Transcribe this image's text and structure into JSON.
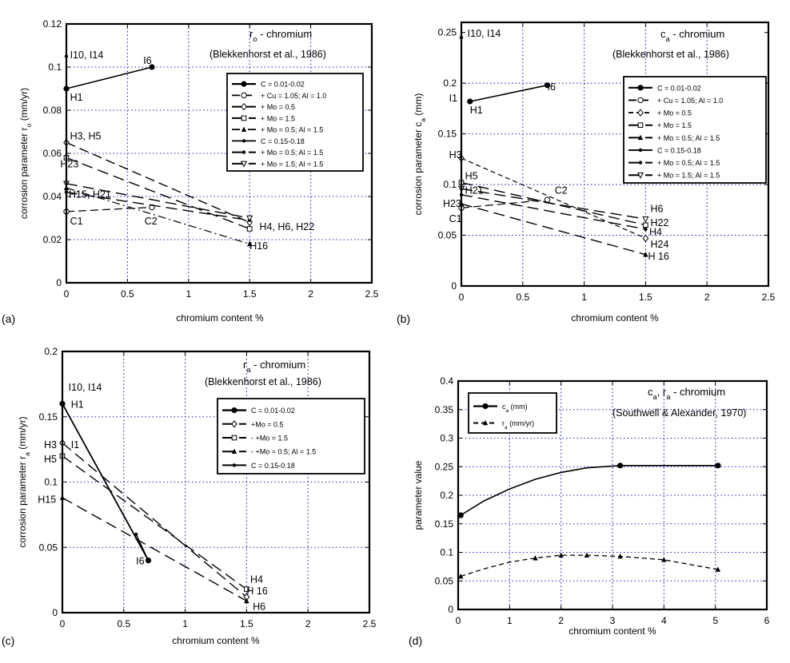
{
  "chart_data": [
    {
      "panel": "(a)",
      "type": "line",
      "title_main": "r",
      "title_sub": "o",
      "title_rest": " - chromium",
      "source": "(Blekkenhorst et al., 1986)",
      "xlabel": "chromium content  %",
      "ylabel_main": "corrosion parameter  r",
      "ylabel_sub": "o",
      "ylabel_unit": "  (mm/yr)",
      "xlim": [
        0,
        2.5
      ],
      "ylim": [
        0,
        0.12
      ],
      "xticks": [
        0,
        0.5,
        1,
        1.5,
        2,
        2.5
      ],
      "yticks": [
        0,
        0.02,
        0.04,
        0.06,
        0.08,
        0.1,
        0.12
      ],
      "xtick_labels": [
        "0",
        "0.5",
        "1",
        "1.5",
        "2",
        "2.5"
      ],
      "ytick_labels": [
        "0",
        "0.02",
        "0.04",
        "0.06",
        "0.08",
        "0.1",
        "0.12"
      ],
      "grid": true,
      "legend_position": "top-right",
      "series": [
        {
          "name": "C = 0.01-0.02",
          "x": [
            0,
            0.7
          ],
          "y": [
            0.09,
            0.1
          ],
          "dash": "",
          "width": 1.6,
          "marker": "circle-filled"
        },
        {
          "name": "+ Cu = 1.05; Al = 1.0",
          "x": [
            0,
            0.7
          ],
          "y": [
            0.033,
            0.035
          ],
          "dash": "10,5",
          "width": 1.2,
          "marker": "circle-open"
        },
        {
          "name": "+ Mo = 0.5",
          "x": [
            0,
            1.5
          ],
          "y": [
            0.065,
            0.028
          ],
          "dash": "12,6",
          "width": 1.4,
          "marker": "diamond"
        },
        {
          "name": "+ Mo = 1.5",
          "x": [
            0,
            1.5
          ],
          "y": [
            0.058,
            0.025
          ],
          "dash": "14,7",
          "width": 1.4,
          "marker": "square"
        },
        {
          "name": "+ Mo = 0.5; Al = 1.5",
          "x": [
            0,
            1.5
          ],
          "y": [
            0.044,
            0.018
          ],
          "dash": "10,4,2,4",
          "width": 1.2,
          "marker": "triangle"
        },
        {
          "name": "C = 0.15-0.18",
          "x": [
            0
          ],
          "y": [
            0.105
          ],
          "dash": "",
          "width": 1.2,
          "marker": "dot"
        },
        {
          "name": "+ Mo = 0.5; Al = 1.5",
          "x": [
            0,
            1.5
          ],
          "y": [
            0.042,
            0.029
          ],
          "dash": "14,7",
          "width": 1.4,
          "marker": "dot"
        },
        {
          "name": "+ Mo = 1.5; Al = 1.5",
          "x": [
            0,
            1.5
          ],
          "y": [
            0.046,
            0.03
          ],
          "dash": "14,7",
          "width": 1.4,
          "marker": "triangle-down"
        }
      ],
      "annotations": [
        {
          "text": "I10, I14",
          "x": 0.03,
          "y": 0.104
        },
        {
          "text": "I6",
          "x": 0.63,
          "y": 0.1015
        },
        {
          "text": "H1",
          "x": 0.03,
          "y": 0.0845
        },
        {
          "text": "H3, H5",
          "x": 0.03,
          "y": 0.0665
        },
        {
          "text": "H23",
          "x": -0.05,
          "y": 0.0535
        },
        {
          "text": "H15, H21",
          "x": 0.02,
          "y": 0.0395
        },
        {
          "text": "C1",
          "x": 0.03,
          "y": 0.027
        },
        {
          "text": "C2",
          "x": 0.64,
          "y": 0.027
        },
        {
          "text": "H4, H6, H22",
          "x": 1.58,
          "y": 0.0245
        },
        {
          "text": "H16",
          "x": 1.5,
          "y": 0.0155
        }
      ]
    },
    {
      "panel": "(b)",
      "type": "line",
      "title_main": "c",
      "title_sub": "a",
      "title_rest": " - chromium",
      "source": "(Blekkenhorst et al., 1986)",
      "xlabel": "chromium content  %",
      "ylabel_main": "corrosion parameter  c",
      "ylabel_sub": "a",
      "ylabel_unit": "  (mm)",
      "xlim": [
        0,
        2.5
      ],
      "ylim": [
        0,
        0.26
      ],
      "xticks": [
        0,
        0.5,
        1,
        1.5,
        2,
        2.5
      ],
      "yticks": [
        0,
        0.05,
        0.1,
        0.15,
        0.2,
        0.25
      ],
      "xtick_labels": [
        "0",
        "0.5",
        "1",
        "1.5",
        "2",
        "2.5"
      ],
      "ytick_labels": [
        "0",
        "0.05",
        "0.1",
        "0.15",
        "0.2",
        "0.25"
      ],
      "grid": true,
      "legend_position": "right",
      "series": [
        {
          "name": "C = 0.01-0.02",
          "x": [
            0.07,
            0.7
          ],
          "y": [
            0.182,
            0.198
          ],
          "dash": "",
          "width": 1.6,
          "marker": "circle-filled"
        },
        {
          "name": "+ Cu = 1.05; Al = 1.0",
          "x": [
            0,
            0.7
          ],
          "y": [
            0.077,
            0.085
          ],
          "dash": "10,5",
          "width": 1.2,
          "marker": "circle-open"
        },
        {
          "name": "+ Mo = 0.5",
          "x": [
            0,
            1.5
          ],
          "y": [
            0.126,
            0.047
          ],
          "dash": "6,4",
          "width": 1.2,
          "marker": "diamond"
        },
        {
          "name": "+ Mo = 1.5",
          "x": [
            0,
            1.5
          ],
          "y": [
            0.102,
            0.06
          ],
          "dash": "14,7",
          "width": 1.4,
          "marker": "square"
        },
        {
          "name": "+ Mo = 0.5; Al = 1.5",
          "x": [
            0,
            1.5
          ],
          "y": [
            0.081,
            0.031
          ],
          "dash": "14,7",
          "width": 1.4,
          "marker": "triangle"
        },
        {
          "name": "C = 0.15-0.18",
          "x": [
            0
          ],
          "y": [
            0.245
          ],
          "dash": "",
          "width": 1.2,
          "marker": "dot"
        },
        {
          "name": "+ Mo = 0.5; Al = 1.5",
          "x": [
            0,
            1.5
          ],
          "y": [
            0.09,
            0.056
          ],
          "dash": "14,7",
          "width": 1.4,
          "marker": "dot"
        },
        {
          "name": "+ Mo = 1.5; Al = 1.5",
          "x": [
            0,
            1.5
          ],
          "y": [
            0.096,
            0.066
          ],
          "dash": "14,7",
          "width": 1.4,
          "marker": "triangle-down"
        }
      ],
      "annotations": [
        {
          "text": "I10, I14",
          "x": 0.05,
          "y": 0.246
        },
        {
          "text": "I1",
          "x": -0.1,
          "y": 0.182
        },
        {
          "text": "H1",
          "x": 0.07,
          "y": 0.17
        },
        {
          "text": "I6",
          "x": 0.7,
          "y": 0.193
        },
        {
          "text": "H3",
          "x": -0.1,
          "y": 0.126
        },
        {
          "text": "H5",
          "x": 0.03,
          "y": 0.105
        },
        {
          "text": "H21",
          "x": 0.03,
          "y": 0.091
        },
        {
          "text": "H23",
          "x": -0.15,
          "y": 0.078
        },
        {
          "text": "C1",
          "x": -0.1,
          "y": 0.063
        },
        {
          "text": "C2",
          "x": 0.76,
          "y": 0.091
        },
        {
          "text": "H6",
          "x": 1.54,
          "y": 0.073
        },
        {
          "text": "H22",
          "x": 1.54,
          "y": 0.059
        },
        {
          "text": "H4",
          "x": 1.53,
          "y": 0.05
        },
        {
          "text": "H24",
          "x": 1.54,
          "y": 0.038
        },
        {
          "text": "H 16",
          "x": 1.52,
          "y": 0.026
        }
      ]
    },
    {
      "panel": "(c)",
      "type": "line",
      "title_main": "r",
      "title_sub": "a",
      "title_rest": " - chromium",
      "source": "(Blekkenhorst et al., 1986)",
      "xlabel": "chromium content  %",
      "ylabel_main": "corrosion parameter  r",
      "ylabel_sub": "a",
      "ylabel_unit": "  (mm/yr)",
      "xlim": [
        0,
        2.5
      ],
      "ylim": [
        0,
        0.2
      ],
      "xticks": [
        0,
        0.5,
        1,
        1.5,
        2,
        2.5
      ],
      "yticks": [
        0,
        0.05,
        0.1,
        0.15,
        0.2
      ],
      "xtick_labels": [
        "0",
        "0.5",
        "1",
        "1.5",
        "2",
        "2.5"
      ],
      "ytick_labels": [
        "0",
        "0.05",
        "0.1",
        "0.15",
        "0.2"
      ],
      "grid": true,
      "legend_position": "top-right",
      "series": [
        {
          "name": "C = 0.01-0.02",
          "x": [
            0,
            0.7
          ],
          "y": [
            0.16,
            0.04
          ],
          "dash": "",
          "width": 1.8,
          "marker": "circle-filled"
        },
        {
          "name": "+Mo = 0.5",
          "x": [
            0,
            1.5
          ],
          "y": [
            0.13,
            0.012
          ],
          "dash": "14,7",
          "width": 1.4,
          "marker": "diamond"
        },
        {
          "name": "- +Mo = 1.5",
          "x": [
            0,
            1.5
          ],
          "y": [
            0.12,
            0.018
          ],
          "dash": "14,7",
          "width": 1.4,
          "marker": "square"
        },
        {
          "name": "- +Mo = 0.5; Al = 1.5",
          "x": [
            0,
            1.5
          ],
          "y": [
            0.088,
            0.009
          ],
          "dash": "14,7",
          "width": 1.4,
          "marker": "triangle"
        },
        {
          "name": "C = 0.15-0.18",
          "x": [
            0.6,
            0.7
          ],
          "y": [
            0.06,
            0.04
          ],
          "dash": "",
          "width": 1.4,
          "marker": "dot"
        }
      ],
      "annotations": [
        {
          "text": "I10, I14",
          "x": 0.05,
          "y": 0.17
        },
        {
          "text": "H1",
          "x": 0.07,
          "y": 0.157
        },
        {
          "text": "H3",
          "x": -0.15,
          "y": 0.126
        },
        {
          "text": "I1",
          "x": 0.07,
          "y": 0.126
        },
        {
          "text": "H5",
          "x": -0.15,
          "y": 0.115
        },
        {
          "text": "H15",
          "x": -0.2,
          "y": 0.084
        },
        {
          "text": "I6",
          "x": 0.6,
          "y": 0.037
        },
        {
          "text": "H4",
          "x": 1.53,
          "y": 0.023
        },
        {
          "text": "H 16",
          "x": 1.5,
          "y": 0.014
        },
        {
          "text": "H6",
          "x": 1.55,
          "y": 0.002
        }
      ]
    },
    {
      "panel": "(d)",
      "type": "line",
      "title_main": "c",
      "title_sub": "a",
      "title_rest": ", r",
      "title_sub2": "a",
      "title_rest2": " - chromium",
      "source": "(Southwell & Alexander, 1970)",
      "xlabel": "chromium content %",
      "ylabel": "parameter value",
      "xlim": [
        0,
        6
      ],
      "ylim": [
        0,
        0.4
      ],
      "xticks": [
        0,
        1,
        2,
        3,
        4,
        5,
        6
      ],
      "yticks": [
        0,
        0.05,
        0.1,
        0.15,
        0.2,
        0.25,
        0.3,
        0.35,
        0.4
      ],
      "xtick_labels": [
        "0",
        "1",
        "2",
        "3",
        "4",
        "5",
        "6"
      ],
      "ytick_labels": [
        "0",
        "0.05",
        "0.1",
        "0.15",
        "0.2",
        "0.25",
        "0.3",
        "0.35",
        "0.4"
      ],
      "grid": true,
      "legend_position": "top-left",
      "series": [
        {
          "name_main": "c",
          "name_sub": "a",
          "name_unit": " (mm)",
          "x": [
            0.05,
            0.5,
            1,
            1.5,
            2,
            2.5,
            3.15,
            4,
            5.05
          ],
          "y": [
            0.165,
            0.19,
            0.211,
            0.228,
            0.24,
            0.248,
            0.252,
            0.252,
            0.252
          ],
          "dash": "",
          "width": 1.6,
          "markers_at": [
            0,
            6,
            8
          ],
          "marker": "circle-filled"
        },
        {
          "name_main": "r",
          "name_sub": "a",
          "name_unit": " (mm/yr)",
          "x": [
            0.05,
            0.5,
            1,
            1.5,
            2,
            2.5,
            3.15,
            4,
            5.05
          ],
          "y": [
            0.058,
            0.071,
            0.083,
            0.09,
            0.095,
            0.095,
            0.093,
            0.087,
            0.07
          ],
          "dash": "6,4",
          "width": 1.3,
          "markers_at": [
            0,
            3,
            4,
            5,
            6,
            7,
            8
          ],
          "marker": "triangle"
        }
      ]
    }
  ]
}
